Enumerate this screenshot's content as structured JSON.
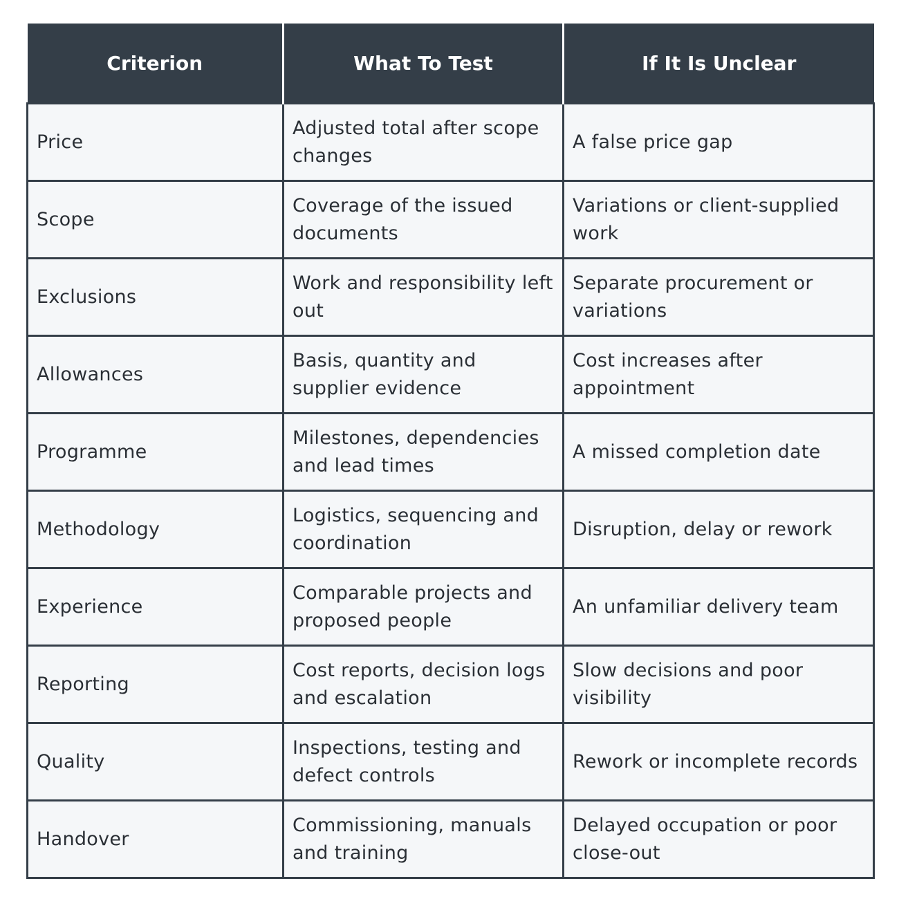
{
  "table": {
    "columns": [
      "Criterion",
      "What To Test",
      "If It Is Unclear"
    ],
    "rows": [
      [
        "Price",
        "Adjusted total after scope changes",
        "A false price gap"
      ],
      [
        "Scope",
        "Coverage of the issued documents",
        "Variations or client-supplied work"
      ],
      [
        "Exclusions",
        "Work and responsibility left out",
        "Separate procurement or variations"
      ],
      [
        "Allowances",
        "Basis, quantity and supplier evidence",
        "Cost increases after appointment"
      ],
      [
        "Programme",
        "Milestones, dependencies and lead times",
        "A missed completion date"
      ],
      [
        "Methodology",
        "Logistics, sequencing and coordination",
        "Disruption, delay or rework"
      ],
      [
        "Experience",
        "Comparable projects and proposed people",
        "An unfamiliar delivery team"
      ],
      [
        "Reporting",
        "Cost reports, decision logs and escalation",
        "Slow decisions and poor visibility"
      ],
      [
        "Quality",
        "Inspections, testing and defect controls",
        "Rework or incomplete records"
      ],
      [
        "Handover",
        "Commissioning, manuals and training",
        "Delayed occupation or poor close-out"
      ]
    ]
  }
}
